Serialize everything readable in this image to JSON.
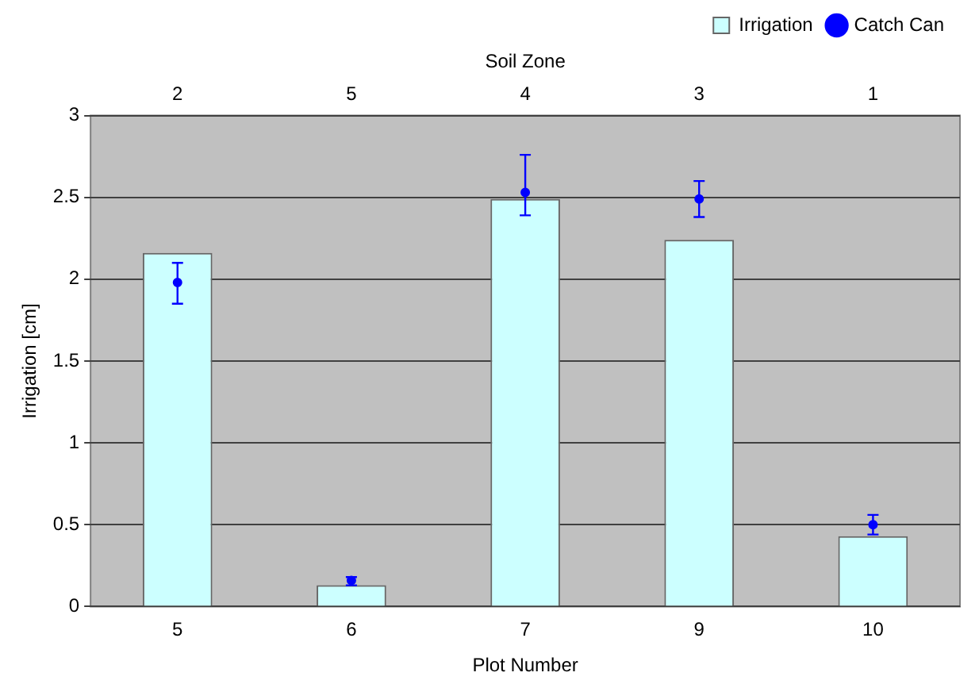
{
  "chart_data": {
    "type": "bar",
    "xlabel": "Plot Number",
    "ylabel": "Irrigation [cm]",
    "x2label": "Soil Zone",
    "categories": [
      "5",
      "6",
      "7",
      "9",
      "10"
    ],
    "series": [
      {
        "name": "Irrigation",
        "color": "#ccffff",
        "values": [
          2.16,
          0.13,
          2.49,
          2.24,
          0.43
        ]
      },
      {
        "name": "Catch Can",
        "type": "scatter",
        "color": "#0000ff",
        "x": [
          "5",
          "6",
          "7",
          "9",
          "10"
        ],
        "values": [
          1.98,
          0.16,
          2.53,
          2.49,
          0.5
        ],
        "errors": [
          [
            1.85,
            2.1
          ],
          [
            0.13,
            0.18
          ],
          [
            2.39,
            2.76
          ],
          [
            2.38,
            2.6
          ],
          [
            0.44,
            0.56
          ]
        ]
      }
    ],
    "annotations": [
      "2",
      "5",
      "4",
      "3",
      "1"
    ],
    "ylim": [
      0,
      3
    ],
    "yticks": [
      0,
      0.5,
      1,
      1.5,
      2,
      2.5,
      3
    ],
    "grid": "y",
    "legend": "top right",
    "marker": "circle"
  }
}
